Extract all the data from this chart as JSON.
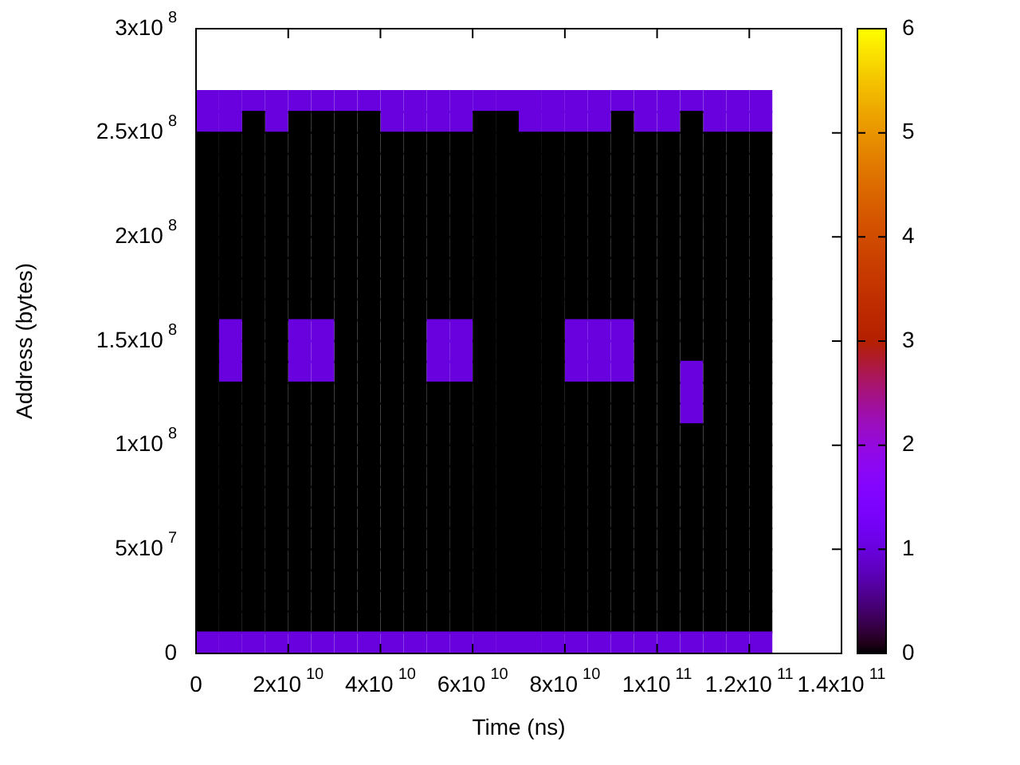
{
  "chart_data": {
    "type": "scatter",
    "xlabel": "Time (ns)",
    "ylabel": "Address (bytes)",
    "x": [
      2500000000,
      7500000000,
      12500000000,
      17500000000,
      22500000000,
      27500000000,
      32500000000,
      37500000000,
      42500000000,
      47500000000,
      52500000000,
      57500000000,
      62500000000,
      67500000000,
      72500000000,
      77500000000,
      82500000000,
      87500000000,
      92500000000,
      97500000000,
      102500000000,
      107500000000,
      112500000000,
      117500000000,
      122500000000
    ],
    "series": [
      {
        "values": [
          5000000,
          5000000,
          5000000,
          5000000,
          5000000,
          5000000,
          5000000,
          5000000,
          5000000,
          5000000,
          5000000,
          5000000,
          5000000,
          5000000,
          5000000,
          5000000,
          5000000,
          5000000,
          5000000,
          5000000,
          5000000,
          5000000,
          5000000,
          5000000,
          5000000
        ],
        "cvalues": [
          1,
          1,
          1,
          1,
          1,
          1,
          1,
          1,
          1,
          1,
          1,
          1,
          1,
          1,
          1,
          1,
          1,
          1,
          1,
          1,
          1,
          1,
          1,
          1,
          1
        ]
      },
      {
        "values": [
          15000000,
          15000000,
          15000000,
          15000000,
          15000000,
          15000000,
          15000000,
          15000000,
          15000000,
          15000000,
          15000000,
          15000000,
          15000000,
          15000000,
          15000000,
          15000000,
          15000000,
          15000000,
          15000000,
          15000000,
          15000000,
          15000000,
          15000000,
          15000000,
          15000000
        ],
        "cvalues": [
          0,
          0,
          0,
          0,
          0,
          0,
          0,
          0,
          0,
          0,
          0,
          0,
          0,
          0,
          0,
          0,
          0,
          0,
          0,
          0,
          0,
          0,
          0,
          0,
          0
        ]
      },
      {
        "values": [
          25000000,
          25000000,
          25000000,
          25000000,
          25000000,
          25000000,
          25000000,
          25000000,
          25000000,
          25000000,
          25000000,
          25000000,
          25000000,
          25000000,
          25000000,
          25000000,
          25000000,
          25000000,
          25000000,
          25000000,
          25000000,
          25000000,
          25000000,
          25000000,
          25000000
        ],
        "cvalues": [
          0,
          0,
          0,
          0,
          0,
          0,
          0,
          0,
          0,
          0,
          0,
          0,
          0,
          0,
          0,
          0,
          0,
          0,
          0,
          0,
          0,
          0,
          0,
          0,
          0
        ]
      },
      {
        "values": [
          35000000,
          35000000,
          35000000,
          35000000,
          35000000,
          35000000,
          35000000,
          35000000,
          35000000,
          35000000,
          35000000,
          35000000,
          35000000,
          35000000,
          35000000,
          35000000,
          35000000,
          35000000,
          35000000,
          35000000,
          35000000,
          35000000,
          35000000,
          35000000,
          35000000
        ],
        "cvalues": [
          0,
          0,
          0,
          0,
          0,
          0,
          0,
          0,
          0,
          0,
          0,
          0,
          0,
          0,
          0,
          0,
          0,
          0,
          0,
          0,
          0,
          0,
          0,
          0,
          0
        ]
      },
      {
        "values": [
          45000000,
          45000000,
          45000000,
          45000000,
          45000000,
          45000000,
          45000000,
          45000000,
          45000000,
          45000000,
          45000000,
          45000000,
          45000000,
          45000000,
          45000000,
          45000000,
          45000000,
          45000000,
          45000000,
          45000000,
          45000000,
          45000000,
          45000000,
          45000000,
          45000000
        ],
        "cvalues": [
          0,
          0,
          0,
          0,
          0,
          0,
          0,
          0,
          0,
          0,
          0,
          0,
          0,
          0,
          0,
          0,
          0,
          0,
          0,
          0,
          0,
          0,
          0,
          0,
          0
        ]
      },
      {
        "values": [
          55000000,
          55000000,
          55000000,
          55000000,
          55000000,
          55000000,
          55000000,
          55000000,
          55000000,
          55000000,
          55000000,
          55000000,
          55000000,
          55000000,
          55000000,
          55000000,
          55000000,
          55000000,
          55000000,
          55000000,
          55000000,
          55000000,
          55000000,
          55000000,
          55000000
        ],
        "cvalues": [
          0,
          0,
          0,
          0,
          0,
          0,
          0,
          0,
          0,
          0,
          0,
          0,
          0,
          0,
          0,
          0,
          0,
          0,
          0,
          0,
          0,
          0,
          0,
          0,
          0
        ]
      },
      {
        "values": [
          65000000,
          65000000,
          65000000,
          65000000,
          65000000,
          65000000,
          65000000,
          65000000,
          65000000,
          65000000,
          65000000,
          65000000,
          65000000,
          65000000,
          65000000,
          65000000,
          65000000,
          65000000,
          65000000,
          65000000,
          65000000,
          65000000,
          65000000,
          65000000,
          65000000
        ],
        "cvalues": [
          0,
          0,
          0,
          0,
          0,
          0,
          0,
          0,
          0,
          0,
          0,
          0,
          0,
          0,
          0,
          0,
          0,
          0,
          0,
          0,
          0,
          0,
          0,
          0,
          0
        ]
      },
      {
        "values": [
          75000000,
          75000000,
          75000000,
          75000000,
          75000000,
          75000000,
          75000000,
          75000000,
          75000000,
          75000000,
          75000000,
          75000000,
          75000000,
          75000000,
          75000000,
          75000000,
          75000000,
          75000000,
          75000000,
          75000000,
          75000000,
          75000000,
          75000000,
          75000000,
          75000000
        ],
        "cvalues": [
          0,
          0,
          0,
          0,
          0,
          0,
          0,
          0,
          0,
          0,
          0,
          0,
          0,
          0,
          0,
          0,
          0,
          0,
          0,
          0,
          0,
          0,
          0,
          0,
          0
        ]
      },
      {
        "values": [
          85000000,
          85000000,
          85000000,
          85000000,
          85000000,
          85000000,
          85000000,
          85000000,
          85000000,
          85000000,
          85000000,
          85000000,
          85000000,
          85000000,
          85000000,
          85000000,
          85000000,
          85000000,
          85000000,
          85000000,
          85000000,
          85000000,
          85000000,
          85000000,
          85000000
        ],
        "cvalues": [
          0,
          0,
          0,
          0,
          0,
          0,
          0,
          0,
          0,
          0,
          0,
          0,
          0,
          0,
          0,
          0,
          0,
          0,
          0,
          0,
          0,
          0,
          0,
          0,
          0
        ]
      },
      {
        "values": [
          95000000,
          95000000,
          95000000,
          95000000,
          95000000,
          95000000,
          95000000,
          95000000,
          95000000,
          95000000,
          95000000,
          95000000,
          95000000,
          95000000,
          95000000,
          95000000,
          95000000,
          95000000,
          95000000,
          95000000,
          95000000,
          95000000,
          95000000,
          95000000,
          95000000
        ],
        "cvalues": [
          0,
          0,
          0,
          0,
          0,
          0,
          0,
          0,
          0,
          0,
          0,
          0,
          0,
          0,
          0,
          0,
          0,
          0,
          0,
          0,
          0,
          0,
          0,
          0,
          0
        ]
      },
      {
        "values": [
          105000000,
          105000000,
          105000000,
          105000000,
          105000000,
          105000000,
          105000000,
          105000000,
          105000000,
          105000000,
          105000000,
          105000000,
          105000000,
          105000000,
          105000000,
          105000000,
          105000000,
          105000000,
          105000000,
          105000000,
          105000000,
          105000000,
          105000000,
          105000000,
          105000000
        ],
        "cvalues": [
          0,
          0,
          0,
          0,
          0,
          0,
          0,
          0,
          0,
          0,
          0,
          0,
          0,
          0,
          0,
          0,
          0,
          0,
          0,
          0,
          0,
          0,
          0,
          0,
          0
        ]
      },
      {
        "x": [
          2500000000,
          7500000000,
          12500000000,
          17500000000,
          22500000000,
          27500000000,
          32500000000,
          37500000000,
          42500000000,
          47500000000,
          52500000000,
          57500000000,
          62500000000,
          67500000000,
          72500000000,
          77500000000,
          82500000000,
          87500000000,
          92500000000,
          97500000000,
          102500000000,
          112500000000,
          117500000000,
          122500000000
        ],
        "values": [
          115000000,
          115000000,
          115000000,
          115000000,
          115000000,
          115000000,
          115000000,
          115000000,
          115000000,
          115000000,
          115000000,
          115000000,
          115000000,
          115000000,
          115000000,
          115000000,
          115000000,
          115000000,
          115000000,
          115000000,
          115000000,
          115000000,
          115000000,
          115000000
        ],
        "cvalues": [
          0,
          0,
          0,
          0,
          0,
          0,
          0,
          0,
          0,
          0,
          0,
          0,
          0,
          0,
          0,
          0,
          0,
          0,
          0,
          0,
          0,
          0,
          0,
          0
        ]
      },
      {
        "x": [
          107500000000
        ],
        "values": [
          115000000
        ],
        "cvalues": [
          1
        ]
      },
      {
        "x": [
          2500000000,
          7500000000,
          12500000000,
          17500000000,
          22500000000,
          27500000000,
          32500000000,
          37500000000,
          42500000000,
          47500000000,
          52500000000,
          57500000000,
          62500000000,
          67500000000,
          72500000000,
          77500000000,
          82500000000,
          87500000000,
          92500000000,
          97500000000,
          102500000000,
          112500000000,
          117500000000,
          122500000000
        ],
        "values": [
          125000000,
          125000000,
          125000000,
          125000000,
          125000000,
          125000000,
          125000000,
          125000000,
          125000000,
          125000000,
          125000000,
          125000000,
          125000000,
          125000000,
          125000000,
          125000000,
          125000000,
          125000000,
          125000000,
          125000000,
          125000000,
          125000000,
          125000000,
          125000000
        ],
        "cvalues": [
          0,
          0,
          0,
          0,
          0,
          0,
          0,
          0,
          0,
          0,
          0,
          0,
          0,
          0,
          0,
          0,
          0,
          0,
          0,
          0,
          0,
          0,
          0,
          0
        ]
      },
      {
        "x": [
          107500000000
        ],
        "values": [
          125000000
        ],
        "cvalues": [
          1
        ]
      },
      {
        "x": [
          2500000000,
          12500000000,
          17500000000,
          32500000000,
          37500000000,
          42500000000,
          47500000000,
          62500000000,
          67500000000,
          72500000000,
          77500000000,
          97500000000,
          102500000000,
          112500000000,
          117500000000,
          122500000000
        ],
        "values": [
          135000000,
          135000000,
          135000000,
          135000000,
          135000000,
          135000000,
          135000000,
          135000000,
          135000000,
          135000000,
          135000000,
          135000000,
          135000000,
          135000000,
          135000000,
          135000000
        ],
        "cvalues": [
          0,
          0,
          0,
          0,
          0,
          0,
          0,
          0,
          0,
          0,
          0,
          0,
          0,
          0,
          0,
          0
        ]
      },
      {
        "x": [
          7500000000,
          22500000000,
          27500000000,
          52500000000,
          57500000000,
          82500000000,
          87500000000,
          92500000000,
          107500000000
        ],
        "values": [
          135000000,
          135000000,
          135000000,
          135000000,
          135000000,
          135000000,
          135000000,
          135000000,
          135000000
        ],
        "cvalues": [
          1,
          1,
          1,
          1,
          1,
          1,
          1,
          1,
          1
        ]
      },
      {
        "x": [
          2500000000,
          12500000000,
          17500000000,
          32500000000,
          37500000000,
          42500000000,
          47500000000,
          62500000000,
          67500000000,
          72500000000,
          77500000000,
          97500000000,
          102500000000,
          107500000000,
          112500000000,
          117500000000,
          122500000000
        ],
        "values": [
          145000000,
          145000000,
          145000000,
          145000000,
          145000000,
          145000000,
          145000000,
          145000000,
          145000000,
          145000000,
          145000000,
          145000000,
          145000000,
          145000000,
          145000000,
          145000000,
          145000000
        ],
        "cvalues": [
          0,
          0,
          0,
          0,
          0,
          0,
          0,
          0,
          0,
          0,
          0,
          0,
          0,
          0,
          0,
          0,
          0
        ]
      },
      {
        "x": [
          7500000000,
          22500000000,
          27500000000,
          52500000000,
          57500000000,
          82500000000,
          87500000000,
          92500000000
        ],
        "values": [
          145000000,
          145000000,
          145000000,
          145000000,
          145000000,
          145000000,
          145000000,
          145000000
        ],
        "cvalues": [
          1,
          1,
          1,
          1,
          1,
          1,
          1,
          1
        ]
      },
      {
        "x": [
          2500000000,
          12500000000,
          17500000000,
          32500000000,
          37500000000,
          42500000000,
          47500000000,
          62500000000,
          67500000000,
          72500000000,
          77500000000,
          97500000000,
          102500000000,
          107500000000,
          112500000000,
          117500000000,
          122500000000
        ],
        "values": [
          155000000,
          155000000,
          155000000,
          155000000,
          155000000,
          155000000,
          155000000,
          155000000,
          155000000,
          155000000,
          155000000,
          155000000,
          155000000,
          155000000,
          155000000,
          155000000,
          155000000
        ],
        "cvalues": [
          0,
          0,
          0,
          0,
          0,
          0,
          0,
          0,
          0,
          0,
          0,
          0,
          0,
          0,
          0,
          0,
          0
        ]
      },
      {
        "x": [
          7500000000,
          22500000000,
          27500000000,
          52500000000,
          57500000000,
          82500000000,
          87500000000,
          92500000000
        ],
        "values": [
          155000000,
          155000000,
          155000000,
          155000000,
          155000000,
          155000000,
          155000000,
          155000000
        ],
        "cvalues": [
          1,
          1,
          1,
          1,
          1,
          1,
          1,
          1
        ]
      },
      {
        "values": [
          165000000,
          165000000,
          165000000,
          165000000,
          165000000,
          165000000,
          165000000,
          165000000,
          165000000,
          165000000,
          165000000,
          165000000,
          165000000,
          165000000,
          165000000,
          165000000,
          165000000,
          165000000,
          165000000,
          165000000,
          165000000,
          165000000,
          165000000,
          165000000,
          165000000
        ],
        "cvalues": [
          0,
          0,
          0,
          0,
          0,
          0,
          0,
          0,
          0,
          0,
          0,
          0,
          0,
          0,
          0,
          0,
          0,
          0,
          0,
          0,
          0,
          0,
          0,
          0,
          0
        ]
      },
      {
        "values": [
          175000000,
          175000000,
          175000000,
          175000000,
          175000000,
          175000000,
          175000000,
          175000000,
          175000000,
          175000000,
          175000000,
          175000000,
          175000000,
          175000000,
          175000000,
          175000000,
          175000000,
          175000000,
          175000000,
          175000000,
          175000000,
          175000000,
          175000000,
          175000000,
          175000000
        ],
        "cvalues": [
          0,
          0,
          0,
          0,
          0,
          0,
          0,
          0,
          0,
          0,
          0,
          0,
          0,
          0,
          0,
          0,
          0,
          0,
          0,
          0,
          0,
          0,
          0,
          0,
          0
        ]
      },
      {
        "values": [
          185000000,
          185000000,
          185000000,
          185000000,
          185000000,
          185000000,
          185000000,
          185000000,
          185000000,
          185000000,
          185000000,
          185000000,
          185000000,
          185000000,
          185000000,
          185000000,
          185000000,
          185000000,
          185000000,
          185000000,
          185000000,
          185000000,
          185000000,
          185000000,
          185000000
        ],
        "cvalues": [
          0,
          0,
          0,
          0,
          0,
          0,
          0,
          0,
          0,
          0,
          0,
          0,
          0,
          0,
          0,
          0,
          0,
          0,
          0,
          0,
          0,
          0,
          0,
          0,
          0
        ]
      },
      {
        "values": [
          195000000,
          195000000,
          195000000,
          195000000,
          195000000,
          195000000,
          195000000,
          195000000,
          195000000,
          195000000,
          195000000,
          195000000,
          195000000,
          195000000,
          195000000,
          195000000,
          195000000,
          195000000,
          195000000,
          195000000,
          195000000,
          195000000,
          195000000,
          195000000,
          195000000
        ],
        "cvalues": [
          0,
          0,
          0,
          0,
          0,
          0,
          0,
          0,
          0,
          0,
          0,
          0,
          0,
          0,
          0,
          0,
          0,
          0,
          0,
          0,
          0,
          0,
          0,
          0,
          0
        ]
      },
      {
        "values": [
          205000000,
          205000000,
          205000000,
          205000000,
          205000000,
          205000000,
          205000000,
          205000000,
          205000000,
          205000000,
          205000000,
          205000000,
          205000000,
          205000000,
          205000000,
          205000000,
          205000000,
          205000000,
          205000000,
          205000000,
          205000000,
          205000000,
          205000000,
          205000000,
          205000000
        ],
        "cvalues": [
          0,
          0,
          0,
          0,
          0,
          0,
          0,
          0,
          0,
          0,
          0,
          0,
          0,
          0,
          0,
          0,
          0,
          0,
          0,
          0,
          0,
          0,
          0,
          0,
          0
        ]
      },
      {
        "values": [
          215000000,
          215000000,
          215000000,
          215000000,
          215000000,
          215000000,
          215000000,
          215000000,
          215000000,
          215000000,
          215000000,
          215000000,
          215000000,
          215000000,
          215000000,
          215000000,
          215000000,
          215000000,
          215000000,
          215000000,
          215000000,
          215000000,
          215000000,
          215000000,
          215000000
        ],
        "cvalues": [
          0,
          0,
          0,
          0,
          0,
          0,
          0,
          0,
          0,
          0,
          0,
          0,
          0,
          0,
          0,
          0,
          0,
          0,
          0,
          0,
          0,
          0,
          0,
          0,
          0
        ]
      },
      {
        "values": [
          225000000,
          225000000,
          225000000,
          225000000,
          225000000,
          225000000,
          225000000,
          225000000,
          225000000,
          225000000,
          225000000,
          225000000,
          225000000,
          225000000,
          225000000,
          225000000,
          225000000,
          225000000,
          225000000,
          225000000,
          225000000,
          225000000,
          225000000,
          225000000,
          225000000
        ],
        "cvalues": [
          0,
          0,
          0,
          0,
          0,
          0,
          0,
          0,
          0,
          0,
          0,
          0,
          0,
          0,
          0,
          0,
          0,
          0,
          0,
          0,
          0,
          0,
          0,
          0,
          0
        ]
      },
      {
        "values": [
          235000000,
          235000000,
          235000000,
          235000000,
          235000000,
          235000000,
          235000000,
          235000000,
          235000000,
          235000000,
          235000000,
          235000000,
          235000000,
          235000000,
          235000000,
          235000000,
          235000000,
          235000000,
          235000000,
          235000000,
          235000000,
          235000000,
          235000000,
          235000000,
          235000000
        ],
        "cvalues": [
          0,
          0,
          0,
          0,
          0,
          0,
          0,
          0,
          0,
          0,
          0,
          0,
          0,
          0,
          0,
          0,
          0,
          0,
          0,
          0,
          0,
          0,
          0,
          0,
          0
        ]
      },
      {
        "values": [
          245000000,
          245000000,
          245000000,
          245000000,
          245000000,
          245000000,
          245000000,
          245000000,
          245000000,
          245000000,
          245000000,
          245000000,
          245000000,
          245000000,
          245000000,
          245000000,
          245000000,
          245000000,
          245000000,
          245000000,
          245000000,
          245000000,
          245000000,
          245000000,
          245000000
        ],
        "cvalues": [
          0,
          0,
          0,
          0,
          0,
          0,
          0,
          0,
          0,
          0,
          0,
          0,
          0,
          0,
          0,
          0,
          0,
          0,
          0,
          0,
          0,
          0,
          0,
          0,
          0
        ]
      },
      {
        "x": [
          12500000000,
          22500000000,
          27500000000,
          32500000000,
          37500000000,
          62500000000,
          67500000000,
          92500000000,
          107500000000
        ],
        "values": [
          255000000,
          255000000,
          255000000,
          255000000,
          255000000,
          255000000,
          255000000,
          255000000,
          255000000
        ],
        "cvalues": [
          0,
          0,
          0,
          0,
          0,
          0,
          0,
          0,
          0
        ]
      },
      {
        "x": [
          2500000000,
          7500000000,
          17500000000,
          42500000000,
          47500000000,
          52500000000,
          57500000000,
          72500000000,
          77500000000,
          82500000000,
          87500000000,
          97500000000,
          102500000000,
          112500000000,
          117500000000,
          122500000000
        ],
        "values": [
          255000000,
          255000000,
          255000000,
          255000000,
          255000000,
          255000000,
          255000000,
          255000000,
          255000000,
          255000000,
          255000000,
          255000000,
          255000000,
          255000000,
          255000000,
          255000000
        ],
        "cvalues": [
          1,
          1,
          1,
          1,
          1,
          1,
          1,
          1,
          1,
          1,
          1,
          1,
          1,
          1,
          1,
          1
        ]
      },
      {
        "values": [
          265000000,
          265000000,
          265000000,
          265000000,
          265000000,
          265000000,
          265000000,
          265000000,
          265000000,
          265000000,
          265000000,
          265000000,
          265000000,
          265000000,
          265000000,
          265000000,
          265000000,
          265000000,
          265000000,
          265000000,
          265000000,
          265000000,
          265000000,
          265000000,
          265000000
        ],
        "cvalues": [
          1,
          1,
          1,
          1,
          1,
          1,
          1,
          1,
          1,
          1,
          1,
          1,
          1,
          1,
          1,
          1,
          1,
          1,
          1,
          1,
          1,
          1,
          1,
          1,
          1
        ]
      }
    ],
    "xlim": [
      0,
      140000000000
    ],
    "xticks": [
      0,
      {
        "value": 20000000000,
        "label": "2x10$^{10}$"
      },
      {
        "value": 40000000000,
        "label": "4x10$^{10}$"
      },
      {
        "value": 60000000000,
        "label": "6x10$^{10}$"
      },
      {
        "value": 80000000000,
        "label": "8x10$^{10}$"
      },
      {
        "value": 100000000000,
        "label": "1x10$^{11}$"
      },
      {
        "value": 120000000000,
        "label": "1.2x10$^{11}$"
      },
      {
        "value": 140000000000,
        "label": "1.4x10$^{11}$"
      }
    ],
    "ylim": [
      0,
      300000000
    ],
    "yticks": [
      0,
      {
        "value": 50000000,
        "label": "5x10$^{7}$"
      },
      {
        "value": 100000000,
        "label": "1x10$^{8}$"
      },
      {
        "value": 150000000,
        "label": "1.5x10$^{8}$"
      },
      {
        "value": 200000000,
        "label": "2x10$^{8}$"
      },
      {
        "value": 250000000,
        "label": "2.5x10$^{8}$"
      },
      {
        "value": 300000000,
        "label": "3x10$^{8}$"
      }
    ],
    "clim": [
      0,
      6
    ],
    "cticks": [
      0,
      1,
      2,
      3,
      4,
      5,
      6
    ],
    "marker": "square",
    "grid": false,
    "legend": false
  }
}
